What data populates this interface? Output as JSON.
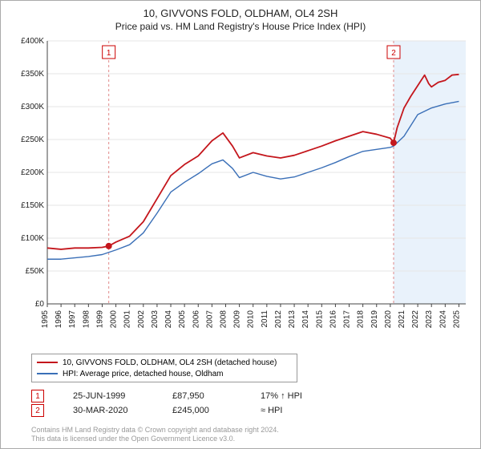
{
  "title": "10, GIVVONS FOLD, OLDHAM, OL4 2SH",
  "subtitle": "Price paid vs. HM Land Registry's House Price Index (HPI)",
  "chart": {
    "type": "line",
    "background_color": "#ffffff",
    "grid_color": "#e6e6e6",
    "axis_color": "#444444",
    "x": {
      "min": 1995,
      "max": 2025.5,
      "ticks": [
        1995,
        1996,
        1997,
        1998,
        1999,
        2000,
        2001,
        2002,
        2003,
        2004,
        2005,
        2006,
        2007,
        2008,
        2009,
        2010,
        2011,
        2012,
        2013,
        2014,
        2015,
        2016,
        2017,
        2018,
        2019,
        2020,
        2021,
        2022,
        2023,
        2024,
        2025
      ]
    },
    "y": {
      "min": 0,
      "max": 400000,
      "ticks": [
        0,
        50000,
        100000,
        150000,
        200000,
        250000,
        300000,
        350000,
        400000
      ],
      "tick_labels": [
        "£0",
        "£50K",
        "£100K",
        "£150K",
        "£200K",
        "£250K",
        "£300K",
        "£350K",
        "£400K"
      ]
    },
    "series": [
      {
        "id": "price_paid",
        "label": "10, GIVVONS FOLD, OLDHAM, OL4 2SH (detached house)",
        "color": "#c4161c",
        "width": 1.8,
        "points": [
          [
            1995.0,
            85000
          ],
          [
            1996.0,
            83000
          ],
          [
            1997.0,
            85000
          ],
          [
            1998.0,
            85000
          ],
          [
            1999.0,
            86000
          ],
          [
            1999.48,
            87950
          ],
          [
            2000.0,
            94000
          ],
          [
            2001.0,
            103000
          ],
          [
            2002.0,
            125000
          ],
          [
            2003.0,
            160000
          ],
          [
            2004.0,
            195000
          ],
          [
            2005.0,
            212000
          ],
          [
            2006.0,
            225000
          ],
          [
            2007.0,
            248000
          ],
          [
            2007.8,
            260000
          ],
          [
            2008.5,
            240000
          ],
          [
            2009.0,
            222000
          ],
          [
            2010.0,
            230000
          ],
          [
            2011.0,
            225000
          ],
          [
            2012.0,
            222000
          ],
          [
            2013.0,
            226000
          ],
          [
            2014.0,
            233000
          ],
          [
            2015.0,
            240000
          ],
          [
            2016.0,
            248000
          ],
          [
            2017.0,
            255000
          ],
          [
            2018.0,
            262000
          ],
          [
            2019.0,
            258000
          ],
          [
            2020.0,
            252000
          ],
          [
            2020.24,
            245000
          ],
          [
            2020.5,
            268000
          ],
          [
            2021.0,
            298000
          ],
          [
            2021.5,
            316000
          ],
          [
            2022.0,
            332000
          ],
          [
            2022.5,
            348000
          ],
          [
            2022.8,
            335000
          ],
          [
            2023.0,
            330000
          ],
          [
            2023.5,
            337000
          ],
          [
            2024.0,
            340000
          ],
          [
            2024.5,
            348000
          ],
          [
            2025.0,
            349000
          ]
        ]
      },
      {
        "id": "hpi",
        "label": "HPI: Average price, detached house, Oldham",
        "color": "#3a6fb7",
        "width": 1.4,
        "points": [
          [
            1995.0,
            68000
          ],
          [
            1996.0,
            68000
          ],
          [
            1997.0,
            70000
          ],
          [
            1998.0,
            72000
          ],
          [
            1999.0,
            75000
          ],
          [
            2000.0,
            82000
          ],
          [
            2001.0,
            90000
          ],
          [
            2002.0,
            108000
          ],
          [
            2003.0,
            138000
          ],
          [
            2004.0,
            170000
          ],
          [
            2005.0,
            185000
          ],
          [
            2006.0,
            198000
          ],
          [
            2007.0,
            213000
          ],
          [
            2007.8,
            219000
          ],
          [
            2008.5,
            206000
          ],
          [
            2009.0,
            192000
          ],
          [
            2010.0,
            200000
          ],
          [
            2011.0,
            194000
          ],
          [
            2012.0,
            190000
          ],
          [
            2013.0,
            193000
          ],
          [
            2014.0,
            200000
          ],
          [
            2015.0,
            207000
          ],
          [
            2016.0,
            215000
          ],
          [
            2017.0,
            224000
          ],
          [
            2018.0,
            232000
          ],
          [
            2019.0,
            235000
          ],
          [
            2020.0,
            238000
          ],
          [
            2020.24,
            240000
          ],
          [
            2021.0,
            255000
          ],
          [
            2022.0,
            288000
          ],
          [
            2023.0,
            298000
          ],
          [
            2024.0,
            304000
          ],
          [
            2025.0,
            308000
          ]
        ]
      }
    ],
    "sale_markers": [
      {
        "idx": "1",
        "x": 1999.48,
        "y": 87950,
        "dash_color": "#e08a8a"
      },
      {
        "idx": "2",
        "x": 2020.24,
        "y": 245000,
        "dash_color": "#e08a8a"
      }
    ],
    "marker_dot": {
      "fill": "#c4161c",
      "radius": 4
    },
    "post_last_sale_band": {
      "from_x": 2020.24,
      "color": "#e9f2fb"
    }
  },
  "legend": {
    "border_color": "#999999",
    "items": [
      {
        "color": "#c4161c",
        "label": "10, GIVVONS FOLD, OLDHAM, OL4 2SH (detached house)"
      },
      {
        "color": "#3a6fb7",
        "label": "HPI: Average price, detached house, Oldham"
      }
    ]
  },
  "sales_table": {
    "rows": [
      {
        "idx": "1",
        "date": "25-JUN-1999",
        "price": "£87,950",
        "delta": "17% ↑ HPI"
      },
      {
        "idx": "2",
        "date": "30-MAR-2020",
        "price": "£245,000",
        "delta": "≈ HPI"
      }
    ]
  },
  "footnote_line1": "Contains HM Land Registry data © Crown copyright and database right 2024.",
  "footnote_line2": "This data is licensed under the Open Government Licence v3.0."
}
